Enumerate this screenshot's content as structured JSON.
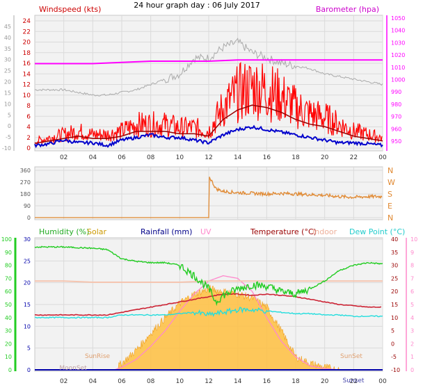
{
  "title": "24 hour graph day : 06 July 2017",
  "colors": {
    "bg": "#ffffff",
    "plot_bg": "#f2f2f2",
    "grid": "#dadada",
    "wind": "#ff0000",
    "wind_avg": "#0000cc",
    "wind_dark": "#990000",
    "baro": "#ff00ff",
    "baro_gray": "#aaaaaa",
    "dir": "#e08830",
    "humidity": "#22cc22",
    "solar": "#ffc040",
    "rain": "#0000aa",
    "uv": "#ff88cc",
    "temp": "#cc2233",
    "indoor": "#f5c5b0",
    "dew": "#22dddd",
    "axis_left_gray": "#999999"
  },
  "chart_data": [
    {
      "type": "line",
      "name": "wind-barometer",
      "title": "24 hour graph day : 06 July 2017",
      "ylabel_left": "Windspeed (kts)",
      "ylabel_right": "Barometer (hpa)",
      "x_ticks": [
        "02",
        "04",
        "06",
        "08",
        "10",
        "12",
        "14",
        "16",
        "18",
        "20",
        "22",
        "00"
      ],
      "y_left_ticks": [
        "24",
        "22",
        "20",
        "18",
        "16",
        "14",
        "12",
        "10",
        "8",
        "6",
        "4",
        "2",
        "0"
      ],
      "y_left_outer_ticks": [
        "45",
        "40",
        "35",
        "30",
        "25",
        "20",
        "15",
        "10",
        "5",
        "0",
        "-5",
        "-10"
      ],
      "y_right_ticks": [
        "1050",
        "1040",
        "1030",
        "1020",
        "1010",
        "1000",
        "990",
        "980",
        "970",
        "960",
        "950"
      ],
      "ylim_left": [
        0,
        24
      ],
      "ylim_right": [
        950,
        1050
      ],
      "series": [
        {
          "name": "Windspeed (kts)",
          "x": [
            0,
            1,
            2,
            3,
            4,
            5,
            6,
            7,
            8,
            9,
            10,
            11,
            12,
            13,
            14,
            15,
            16,
            17,
            18,
            19,
            20,
            21,
            22,
            23,
            24
          ],
          "values": [
            1,
            1.5,
            2,
            2.5,
            2,
            2,
            2.5,
            3.5,
            3.5,
            3.5,
            3,
            3,
            2.5,
            6,
            8,
            9,
            8.5,
            7.5,
            6,
            5,
            4.5,
            3.5,
            2.5,
            2,
            1.5
          ]
        },
        {
          "name": "Wind average (kts)",
          "x": [
            0,
            1,
            2,
            3,
            4,
            5,
            6,
            7,
            8,
            9,
            10,
            11,
            12,
            13,
            14,
            15,
            16,
            17,
            18,
            19,
            20,
            21,
            22,
            23,
            24
          ],
          "values": [
            0.5,
            0.8,
            1.5,
            1,
            1,
            0.5,
            1.5,
            2,
            2.5,
            2,
            2,
            1.5,
            1,
            2.5,
            3.5,
            4,
            3.5,
            3,
            2.5,
            2,
            1.5,
            1,
            1,
            0.8,
            0.5
          ]
        },
        {
          "name": "Barometer (hpa)",
          "x": [
            0,
            2,
            4,
            6,
            8,
            10,
            12,
            14,
            16,
            18,
            20,
            22,
            24
          ],
          "values": [
            1013,
            1013,
            1013,
            1014,
            1015,
            1015,
            1015,
            1016,
            1016,
            1016,
            1016,
            1016,
            1016
          ]
        },
        {
          "name": "Barometer trace (gray)",
          "x": [
            0,
            1,
            2,
            3,
            4,
            5,
            6,
            7,
            8,
            9,
            10,
            11,
            12,
            13,
            14,
            15,
            16,
            17,
            18,
            19,
            20,
            21,
            22,
            23,
            24
          ],
          "values": [
            11,
            11,
            11,
            10.5,
            10,
            10,
            10.5,
            11,
            12,
            13,
            14,
            17,
            17,
            19,
            20,
            18,
            17,
            16,
            15.5,
            15,
            14,
            13.5,
            13,
            12.5,
            12
          ]
        }
      ]
    },
    {
      "type": "line",
      "name": "wind-direction",
      "y_left_ticks": [
        "360",
        "270",
        "180",
        "90",
        "0"
      ],
      "y_right_labels": [
        "N",
        "W",
        "S",
        "E",
        "N"
      ],
      "ylim": [
        0,
        360
      ],
      "series": [
        {
          "name": "Wind direction",
          "x": [
            0,
            12,
            12.05,
            12.5,
            13,
            14,
            15,
            16,
            17,
            18,
            19,
            20,
            21,
            22,
            23,
            24
          ],
          "values": [
            0,
            0,
            310,
            220,
            200,
            190,
            185,
            180,
            185,
            180,
            175,
            170,
            160,
            155,
            160,
            160
          ]
        }
      ]
    },
    {
      "type": "line",
      "name": "temp-hum",
      "legend": [
        "Humidity (%)",
        "Solar",
        "Rainfall (mm)",
        "UV",
        "Temperature (°C)",
        "Indoor",
        "Dew Point (°C)"
      ],
      "x_ticks": [
        "02",
        "04",
        "06",
        "08",
        "10",
        "12",
        "14",
        "16",
        "18",
        "20",
        "22",
        "00"
      ],
      "y_hum_ticks": [
        "100",
        "90",
        "80",
        "70",
        "60",
        "50",
        "40",
        "30",
        "20",
        "10",
        "0"
      ],
      "y_rain_ticks": [
        "30",
        "25",
        "20",
        "15",
        "10",
        "5",
        "0"
      ],
      "y_temp_ticks": [
        "40",
        "35",
        "30",
        "25",
        "20",
        "15",
        "10",
        "5",
        "0",
        "-5",
        "-10"
      ],
      "y_uv_ticks": [
        "10",
        "9",
        "8",
        "7",
        "6",
        "5",
        "4",
        "3",
        "2",
        "1",
        "0"
      ],
      "annotations": [
        "SunRise",
        "SunSet",
        "MoonSet",
        "Sunset"
      ],
      "series": [
        {
          "name": "Humidity (%)",
          "x": [
            0,
            2,
            4,
            5,
            6,
            7,
            8,
            9,
            10,
            11,
            12,
            12.5,
            13,
            14,
            15,
            16,
            17,
            18,
            19,
            20,
            21,
            22,
            23,
            24
          ],
          "values": [
            94,
            94,
            93,
            92,
            85,
            83,
            82,
            82,
            80,
            72,
            62,
            52,
            57,
            62,
            65,
            64,
            60,
            58,
            62,
            68,
            76,
            80,
            82,
            81
          ]
        },
        {
          "name": "Solar",
          "x": [
            0,
            5.5,
            6,
            7,
            8,
            9,
            10,
            11,
            12,
            13,
            14,
            15,
            16,
            17,
            18,
            19,
            20,
            21,
            24
          ],
          "values": [
            0,
            0,
            5,
            15,
            28,
            40,
            51,
            58,
            62,
            60,
            58,
            55,
            48,
            30,
            10,
            5,
            2,
            0,
            0
          ]
        },
        {
          "name": "UV",
          "x": [
            0,
            5.5,
            6,
            7,
            8,
            9,
            10,
            11,
            12,
            13,
            14,
            15,
            16,
            17,
            18,
            19,
            20,
            21,
            24
          ],
          "values": [
            0,
            0,
            0.2,
            0.8,
            1.8,
            3,
            4.5,
            5.8,
            6.8,
            7.2,
            7,
            6,
            4,
            2.2,
            1,
            0.3,
            0.1,
            0,
            0
          ]
        },
        {
          "name": "Temperature (°C)",
          "x": [
            0,
            2,
            4,
            5,
            6,
            7,
            8,
            9,
            10,
            11,
            12,
            13,
            14,
            15,
            16,
            17,
            18,
            19,
            20,
            21,
            22,
            23,
            24
          ],
          "values": [
            11,
            11,
            11,
            11,
            12,
            13,
            14,
            15,
            16,
            17,
            18,
            19,
            19,
            18.5,
            19,
            18.5,
            18,
            17,
            16,
            15,
            14.5,
            14,
            14
          ]
        },
        {
          "name": "Indoor",
          "x": [
            0,
            2,
            4,
            6,
            8,
            10,
            12,
            14,
            16,
            18,
            20,
            22,
            24
          ],
          "values": [
            24,
            24,
            23.5,
            23.5,
            23.5,
            23.5,
            24,
            24,
            24,
            24,
            24,
            24,
            24
          ]
        },
        {
          "name": "Dew Point (°C)",
          "x": [
            0,
            2,
            4,
            5,
            6,
            7,
            8,
            9,
            10,
            11,
            12,
            13,
            14,
            15,
            16,
            17,
            18,
            19,
            20,
            21,
            22,
            23,
            24
          ],
          "values": [
            10,
            10,
            10,
            10,
            11,
            11,
            11,
            11,
            11.5,
            12,
            11,
            12,
            13,
            13,
            12.5,
            12,
            11.5,
            11.5,
            11,
            11,
            10.5,
            10.5,
            10.5
          ]
        },
        {
          "name": "Rainfall (mm)",
          "x": [
            0,
            24
          ],
          "values": [
            0,
            0
          ]
        }
      ]
    }
  ]
}
